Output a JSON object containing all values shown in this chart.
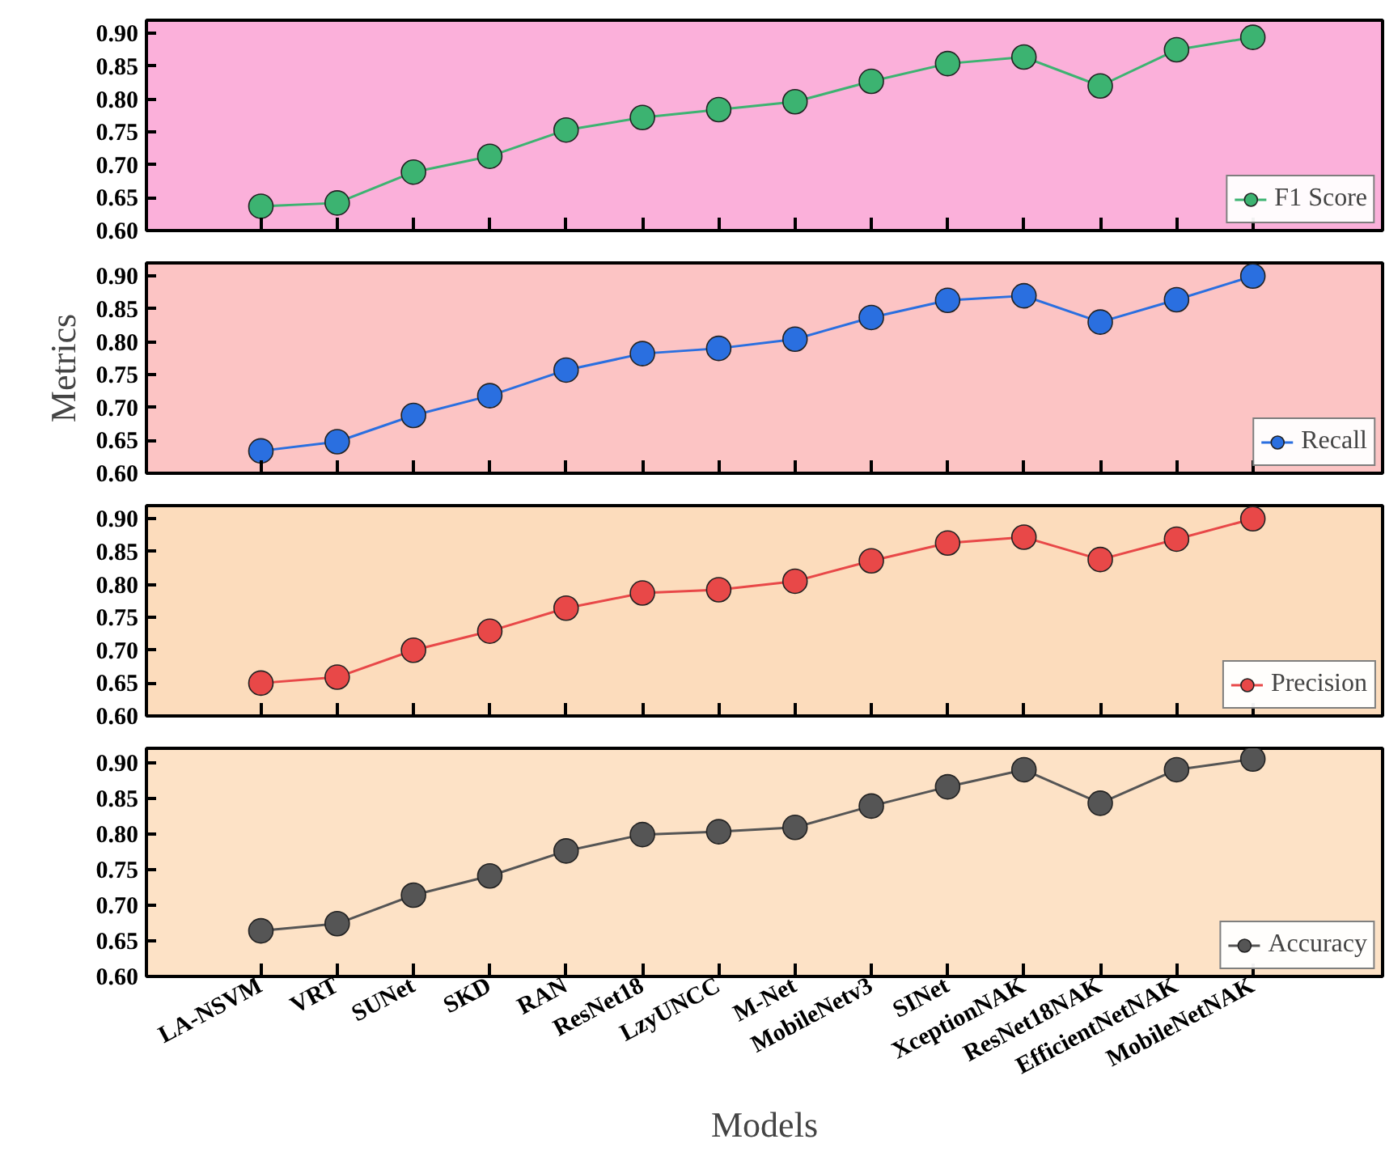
{
  "chart_data": [
    {
      "type": "line",
      "categories": [
        null,
        null,
        null,
        null,
        null,
        null,
        null,
        null,
        null,
        null,
        null,
        null,
        null,
        null
      ],
      "series": [
        {
          "name": "F1 Score",
          "color": "#3cb371",
          "values": [
            0.637,
            0.642,
            0.689,
            0.713,
            0.753,
            0.772,
            0.784,
            0.796,
            0.827,
            0.854,
            0.864,
            0.82,
            0.875,
            0.894
          ]
        }
      ],
      "ylim": [
        0.6,
        0.92
      ],
      "yticks": [
        {
          "value": 0.6,
          "label": "0.60"
        },
        {
          "value": 0.65,
          "label": "0.65"
        },
        {
          "value": 0.7,
          "label": "0.70"
        },
        {
          "value": 0.75,
          "label": "0.75"
        },
        {
          "value": 0.8,
          "label": "0.80"
        },
        {
          "value": 0.85,
          "label": "0.85"
        },
        {
          "value": 0.9,
          "label": "0.90"
        }
      ],
      "tick_labels": "y",
      "legend": "bottom right",
      "marker": "circle",
      "grid": false
    },
    {
      "type": "line",
      "categories": [
        null,
        null,
        null,
        null,
        null,
        null,
        null,
        null,
        null,
        null,
        null,
        null,
        null,
        null
      ],
      "series": [
        {
          "name": "Recall",
          "color": "#2a6fe0",
          "values": [
            0.634,
            0.648,
            0.688,
            0.718,
            0.757,
            0.782,
            0.79,
            0.804,
            0.837,
            0.863,
            0.87,
            0.83,
            0.864,
            0.9
          ]
        }
      ],
      "ylabel": "Metrics",
      "ylim": [
        0.6,
        0.92
      ],
      "yticks": [
        {
          "value": 0.6,
          "label": "0.60"
        },
        {
          "value": 0.65,
          "label": "0.65"
        },
        {
          "value": 0.7,
          "label": "0.70"
        },
        {
          "value": 0.75,
          "label": "0.75"
        },
        {
          "value": 0.8,
          "label": "0.80"
        },
        {
          "value": 0.85,
          "label": "0.85"
        },
        {
          "value": 0.9,
          "label": "0.90"
        }
      ],
      "tick_labels": "y",
      "legend": "bottom right",
      "marker": "circle",
      "grid": false
    },
    {
      "type": "line",
      "categories": [
        null,
        null,
        null,
        null,
        null,
        null,
        null,
        null,
        null,
        null,
        null,
        null,
        null,
        null
      ],
      "series": [
        {
          "name": "Precision",
          "color": "#e84848",
          "values": [
            0.65,
            0.659,
            0.7,
            0.729,
            0.764,
            0.787,
            0.792,
            0.805,
            0.836,
            0.863,
            0.872,
            0.838,
            0.869,
            0.9
          ]
        }
      ],
      "ylim": [
        0.6,
        0.92
      ],
      "yticks": [
        {
          "value": 0.6,
          "label": "0.60"
        },
        {
          "value": 0.65,
          "label": "0.65"
        },
        {
          "value": 0.7,
          "label": "0.70"
        },
        {
          "value": 0.75,
          "label": "0.75"
        },
        {
          "value": 0.8,
          "label": "0.80"
        },
        {
          "value": 0.85,
          "label": "0.85"
        },
        {
          "value": 0.9,
          "label": "0.90"
        }
      ],
      "tick_labels": "y",
      "legend": "bottom right",
      "marker": "circle",
      "grid": false
    },
    {
      "type": "line",
      "categories": [
        "LA-NSVM",
        "VRT",
        "SUNet",
        "SKD",
        "RAN",
        "ResNet18",
        "LzyUNCC",
        "M-Net",
        "MobileNetv3",
        "SINet",
        "XceptionNAK",
        "ResNet18NAK",
        "EfficientNetNAK",
        "MobileNetNAK"
      ],
      "series": [
        {
          "name": "Accuracy",
          "color": "#555555",
          "values": [
            0.664,
            0.674,
            0.714,
            0.741,
            0.776,
            0.799,
            0.803,
            0.809,
            0.839,
            0.866,
            0.89,
            0.843,
            0.89,
            0.905
          ]
        }
      ],
      "xlabel": "Models",
      "ylim": [
        0.6,
        0.92
      ],
      "yticks": [
        {
          "value": 0.6,
          "label": "0.60"
        },
        {
          "value": 0.65,
          "label": "0.65"
        },
        {
          "value": 0.7,
          "label": "0.70"
        },
        {
          "value": 0.75,
          "label": "0.75"
        },
        {
          "value": 0.8,
          "label": "0.80"
        },
        {
          "value": 0.85,
          "label": "0.85"
        },
        {
          "value": 0.9,
          "label": "0.90"
        }
      ],
      "legend": "bottom right",
      "marker": "circle",
      "grid": false
    }
  ]
}
